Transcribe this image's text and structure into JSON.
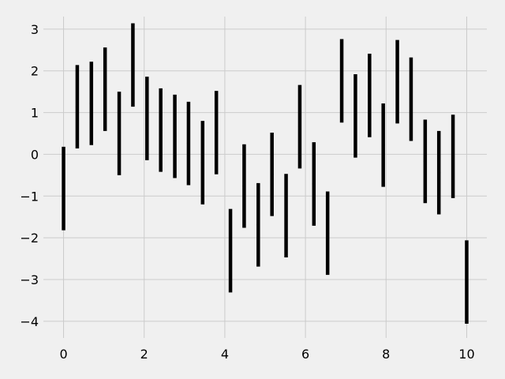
{
  "chart_data": {
    "type": "errorbar",
    "title": "",
    "xlabel": "",
    "ylabel": "",
    "xlim": [
      -0.5,
      10.5
    ],
    "ylim": [
      -4.4,
      3.3
    ],
    "xticks": [
      0,
      2,
      4,
      6,
      8,
      10
    ],
    "yticks": [
      -4,
      -3,
      -2,
      -1,
      0,
      1,
      2,
      3
    ],
    "grid": true,
    "error": 1.0,
    "x": [
      0.0,
      0.34,
      0.69,
      1.03,
      1.38,
      1.72,
      2.07,
      2.41,
      2.76,
      3.1,
      3.45,
      3.79,
      4.14,
      4.48,
      4.83,
      5.17,
      5.52,
      5.86,
      6.21,
      6.55,
      6.9,
      7.24,
      7.59,
      7.93,
      8.28,
      8.62,
      8.97,
      9.31,
      9.66,
      10.0
    ],
    "y": [
      -0.82,
      1.14,
      1.22,
      1.56,
      0.5,
      2.14,
      0.86,
      0.58,
      0.43,
      0.26,
      -0.2,
      0.52,
      -2.31,
      -0.76,
      -1.69,
      -0.48,
      -1.47,
      0.66,
      -0.71,
      -1.89,
      1.76,
      0.92,
      1.41,
      0.22,
      1.74,
      1.32,
      -0.17,
      -0.44,
      -0.05,
      -3.06
    ]
  }
}
